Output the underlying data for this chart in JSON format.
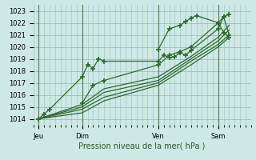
{
  "title": "Pression niveau de la mer( hPa )",
  "bg_color": "#cde8e5",
  "grid_color": "#9bbfbc",
  "line_color": "#2d6a2d",
  "xlim": [
    0,
    80
  ],
  "ylim": [
    1013.5,
    1023.5
  ],
  "yticks": [
    1014,
    1015,
    1016,
    1017,
    1018,
    1019,
    1020,
    1021,
    1022,
    1023
  ],
  "xtick_labels": [
    "Jeu",
    "Dim",
    "Ven",
    "Sam"
  ],
  "xtick_positions": [
    2,
    18,
    46,
    68
  ],
  "vlines": [
    2,
    18,
    46,
    68
  ],
  "series": [
    {
      "x": [
        2,
        4,
        6,
        18,
        20,
        22,
        24,
        26,
        46,
        48,
        50,
        52,
        54,
        56,
        58,
        68,
        70,
        72
      ],
      "y": [
        1014.0,
        1014.4,
        1014.8,
        1017.5,
        1018.5,
        1018.2,
        1019.0,
        1018.8,
        1018.8,
        1019.3,
        1019.1,
        1019.2,
        1019.5,
        1019.3,
        1019.7,
        1021.5,
        1022.5,
        1022.7
      ],
      "marker": true
    },
    {
      "x": [
        2,
        18,
        26,
        46,
        58,
        68,
        72
      ],
      "y": [
        1014.0,
        1015.2,
        1016.5,
        1017.5,
        1019.2,
        1020.8,
        1021.8
      ],
      "marker": false
    },
    {
      "x": [
        2,
        18,
        26,
        46,
        58,
        68,
        72
      ],
      "y": [
        1014.0,
        1015.0,
        1016.2,
        1017.2,
        1019.0,
        1020.5,
        1021.4
      ],
      "marker": false
    },
    {
      "x": [
        2,
        18,
        26,
        46,
        58,
        68,
        72
      ],
      "y": [
        1014.0,
        1014.8,
        1015.8,
        1017.0,
        1018.8,
        1020.2,
        1021.0
      ],
      "marker": false
    },
    {
      "x": [
        2,
        18,
        26,
        46,
        58,
        68,
        72
      ],
      "y": [
        1014.0,
        1014.5,
        1015.5,
        1016.8,
        1018.5,
        1020.0,
        1020.8
      ],
      "marker": false
    },
    {
      "x": [
        18,
        22,
        26,
        46,
        50,
        54,
        58,
        68,
        70,
        72
      ],
      "y": [
        1015.3,
        1016.8,
        1017.2,
        1018.5,
        1019.3,
        1019.6,
        1020.0,
        1022.0,
        1022.5,
        1021.0
      ],
      "marker": true
    },
    {
      "x": [
        46,
        50,
        54,
        56,
        58,
        60,
        68,
        70,
        72
      ],
      "y": [
        1019.8,
        1021.5,
        1021.8,
        1022.1,
        1022.4,
        1022.6,
        1022.0,
        1021.2,
        1020.8
      ],
      "marker": true
    }
  ]
}
